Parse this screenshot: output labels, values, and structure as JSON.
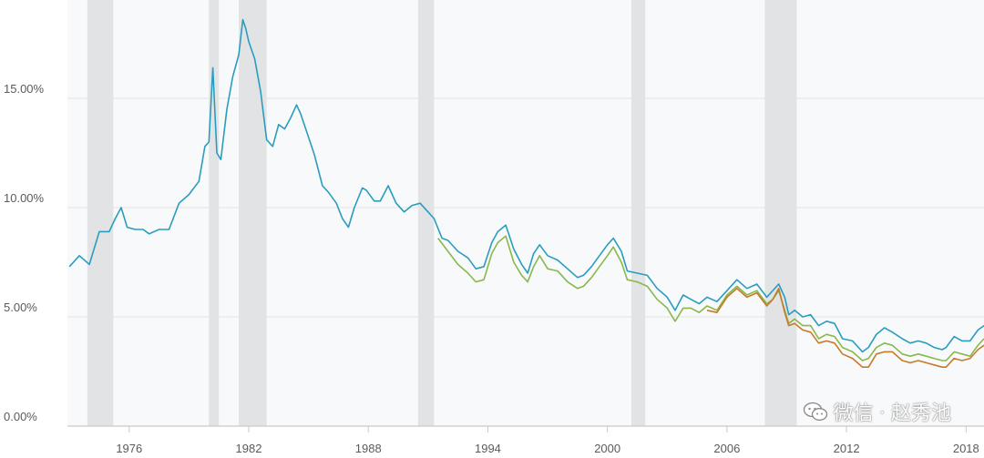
{
  "chart_data": {
    "type": "line",
    "title": "",
    "xlabel": "",
    "ylabel": "",
    "xlim": [
      1972.9,
      2018.9
    ],
    "ylim": [
      0,
      19.5
    ],
    "yticks": [
      "0.00%",
      "5.00%",
      "10.00%",
      "15.00%"
    ],
    "ytick_values": [
      0,
      5,
      10,
      15
    ],
    "xticks": [
      "1976",
      "1982",
      "1988",
      "1994",
      "2000",
      "2006",
      "2012",
      "2018"
    ],
    "xtick_values": [
      1976,
      1982,
      1988,
      1994,
      2000,
      2006,
      2012,
      2018
    ],
    "grid": true,
    "recessions": [
      [
        1973.9,
        1975.2
      ],
      [
        1980.0,
        1980.5
      ],
      [
        1981.5,
        1982.9
      ],
      [
        1990.5,
        1991.3
      ],
      [
        2001.2,
        2001.9
      ],
      [
        2007.9,
        2009.5
      ]
    ],
    "series": [
      {
        "color": "#2a9dbf",
        "x": [
          1973.0,
          1973.5,
          1974.0,
          1974.5,
          1975.0,
          1975.3,
          1975.6,
          1975.9,
          1976.3,
          1976.7,
          1977.0,
          1977.5,
          1978.0,
          1978.5,
          1979.0,
          1979.5,
          1979.8,
          1980.0,
          1980.2,
          1980.4,
          1980.6,
          1980.9,
          1981.2,
          1981.5,
          1981.7,
          1981.85,
          1982.0,
          1982.3,
          1982.6,
          1982.9,
          1983.2,
          1983.5,
          1983.8,
          1984.1,
          1984.4,
          1984.6,
          1984.9,
          1985.3,
          1985.7,
          1986.0,
          1986.4,
          1986.7,
          1987.0,
          1987.3,
          1987.7,
          1987.9,
          1988.3,
          1988.6,
          1989.0,
          1989.4,
          1989.8,
          1990.2,
          1990.6,
          1990.9,
          1991.3,
          1991.7,
          1992.0,
          1992.5,
          1993.0,
          1993.4,
          1993.8,
          1994.2,
          1994.5,
          1994.9,
          1995.3,
          1995.7,
          1996.0,
          1996.3,
          1996.6,
          1997.0,
          1997.5,
          1998.0,
          1998.5,
          1998.8,
          1999.2,
          1999.6,
          2000.0,
          2000.3,
          2000.7,
          2001.0,
          2001.5,
          2002.0,
          2002.5,
          2003.0,
          2003.4,
          2003.8,
          2004.2,
          2004.6,
          2005.0,
          2005.5,
          2006.0,
          2006.5,
          2007.0,
          2007.5,
          2008.0,
          2008.3,
          2008.6,
          2008.9,
          2009.1,
          2009.4,
          2009.8,
          2010.2,
          2010.6,
          2011.0,
          2011.4,
          2011.8,
          2012.3,
          2012.8,
          2013.1,
          2013.5,
          2013.9,
          2014.3,
          2014.8,
          2015.2,
          2015.6,
          2016.0,
          2016.4,
          2016.8,
          2017.0,
          2017.4,
          2017.8,
          2018.2,
          2018.6,
          2018.9
        ],
        "y": [
          7.3,
          7.8,
          7.4,
          8.9,
          8.9,
          9.5,
          10.0,
          9.1,
          9.0,
          9.0,
          8.8,
          9.0,
          9.0,
          10.2,
          10.6,
          11.2,
          12.8,
          13.0,
          16.4,
          12.5,
          12.2,
          14.5,
          16.0,
          17.0,
          18.6,
          18.2,
          17.6,
          16.8,
          15.3,
          13.1,
          12.8,
          13.8,
          13.6,
          14.1,
          14.7,
          14.3,
          13.5,
          12.4,
          11.0,
          10.7,
          10.2,
          9.5,
          9.1,
          10.0,
          10.9,
          10.8,
          10.3,
          10.3,
          11.0,
          10.2,
          9.8,
          10.1,
          10.2,
          9.9,
          9.5,
          8.6,
          8.5,
          8.0,
          7.7,
          7.2,
          7.3,
          8.4,
          8.9,
          9.2,
          8.1,
          7.4,
          7.0,
          7.9,
          8.3,
          7.8,
          7.6,
          7.2,
          6.8,
          6.9,
          7.3,
          7.8,
          8.3,
          8.6,
          8.0,
          7.1,
          7.0,
          6.9,
          6.3,
          5.9,
          5.3,
          6.0,
          5.8,
          5.6,
          5.9,
          5.7,
          6.2,
          6.7,
          6.3,
          6.5,
          5.9,
          6.2,
          6.5,
          5.9,
          5.1,
          5.3,
          5.0,
          5.1,
          4.6,
          4.8,
          4.7,
          4.0,
          3.9,
          3.4,
          3.6,
          4.2,
          4.5,
          4.3,
          4.0,
          3.8,
          3.9,
          3.8,
          3.6,
          3.5,
          3.6,
          4.1,
          3.9,
          3.9,
          4.4,
          4.6
        ]
      },
      {
        "color": "#8ab84a",
        "x": [
          1991.5,
          1992.0,
          1992.5,
          1993.0,
          1993.4,
          1993.8,
          1994.2,
          1994.5,
          1994.9,
          1995.3,
          1995.7,
          1996.0,
          1996.3,
          1996.6,
          1997.0,
          1997.5,
          1998.0,
          1998.5,
          1998.8,
          1999.2,
          1999.6,
          2000.0,
          2000.3,
          2000.7,
          2001.0,
          2001.5,
          2002.0,
          2002.5,
          2003.0,
          2003.4,
          2003.8,
          2004.2,
          2004.6,
          2005.0,
          2005.5,
          2006.0,
          2006.5,
          2007.0,
          2007.5,
          2008.0,
          2008.3,
          2008.6,
          2008.9,
          2009.1,
          2009.4,
          2009.8,
          2010.2,
          2010.6,
          2011.0,
          2011.4,
          2011.8,
          2012.3,
          2012.8,
          2013.1,
          2013.5,
          2013.9,
          2014.3,
          2014.8,
          2015.2,
          2015.6,
          2016.0,
          2016.4,
          2016.8,
          2017.0,
          2017.4,
          2017.8,
          2018.2,
          2018.6,
          2018.9
        ],
        "y": [
          8.6,
          8.0,
          7.4,
          7.0,
          6.6,
          6.7,
          7.9,
          8.4,
          8.7,
          7.5,
          6.9,
          6.6,
          7.3,
          7.8,
          7.2,
          7.1,
          6.6,
          6.3,
          6.4,
          6.8,
          7.3,
          7.8,
          8.2,
          7.5,
          6.7,
          6.6,
          6.4,
          5.8,
          5.4,
          4.8,
          5.4,
          5.4,
          5.2,
          5.5,
          5.3,
          6.0,
          6.4,
          6.0,
          6.2,
          5.6,
          5.8,
          6.2,
          5.3,
          4.7,
          4.9,
          4.6,
          4.6,
          4.0,
          4.2,
          4.1,
          3.6,
          3.4,
          3.0,
          3.1,
          3.6,
          3.8,
          3.7,
          3.3,
          3.2,
          3.3,
          3.2,
          3.1,
          3.0,
          3.0,
          3.4,
          3.3,
          3.2,
          3.7,
          4.0
        ]
      },
      {
        "color": "#c87a2a",
        "x": [
          2005.0,
          2005.5,
          2006.0,
          2006.5,
          2007.0,
          2007.5,
          2008.0,
          2008.3,
          2008.6,
          2008.9,
          2009.1,
          2009.4,
          2009.8,
          2010.2,
          2010.6,
          2011.0,
          2011.4,
          2011.8,
          2012.3,
          2012.8,
          2013.1,
          2013.5,
          2013.9,
          2014.3,
          2014.8,
          2015.2,
          2015.6,
          2016.0,
          2016.4,
          2016.8,
          2017.0,
          2017.4,
          2017.8,
          2018.2,
          2018.6,
          2018.9
        ],
        "y": [
          5.3,
          5.2,
          5.9,
          6.3,
          5.9,
          6.1,
          5.5,
          5.8,
          6.3,
          5.2,
          4.6,
          4.7,
          4.4,
          4.3,
          3.8,
          3.9,
          3.8,
          3.3,
          3.1,
          2.7,
          2.7,
          3.3,
          3.4,
          3.4,
          3.0,
          2.9,
          3.0,
          2.9,
          2.8,
          2.7,
          2.7,
          3.1,
          3.0,
          3.1,
          3.5,
          3.7
        ]
      }
    ]
  },
  "watermark": {
    "icon": "wechat-icon",
    "text_left": "微信",
    "text_right": "赵秀池"
  }
}
